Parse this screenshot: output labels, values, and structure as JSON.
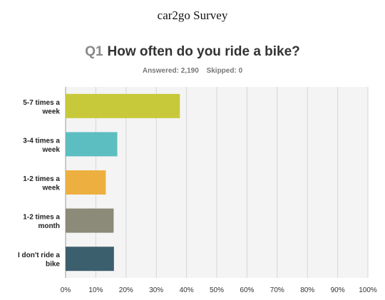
{
  "header": {
    "survey_title": "car2go Survey",
    "question_number": "Q1",
    "question_text": "How often do you ride a bike?",
    "answered": "Answered: 2,190",
    "skipped": "Skipped: 0"
  },
  "chart_data": {
    "type": "bar",
    "orientation": "horizontal",
    "title": "How often do you ride a bike?",
    "categories": [
      [
        "5-7 times a",
        "week"
      ],
      [
        "3-4 times a",
        "week"
      ],
      [
        "1-2 times a",
        "week"
      ],
      [
        "1-2 times a",
        "month"
      ],
      [
        "I don't ride a",
        "bike"
      ]
    ],
    "values": [
      37.8,
      17.1,
      13.3,
      15.9,
      16.0
    ],
    "colors": [
      "#c7c93a",
      "#5cbec0",
      "#edb040",
      "#8c8a78",
      "#3c5f6e"
    ],
    "xlim": [
      0,
      100
    ],
    "x_ticks": [
      "0%",
      "10%",
      "20%",
      "30%",
      "40%",
      "50%",
      "60%",
      "70%",
      "80%",
      "90%",
      "100%"
    ],
    "grid": true
  }
}
